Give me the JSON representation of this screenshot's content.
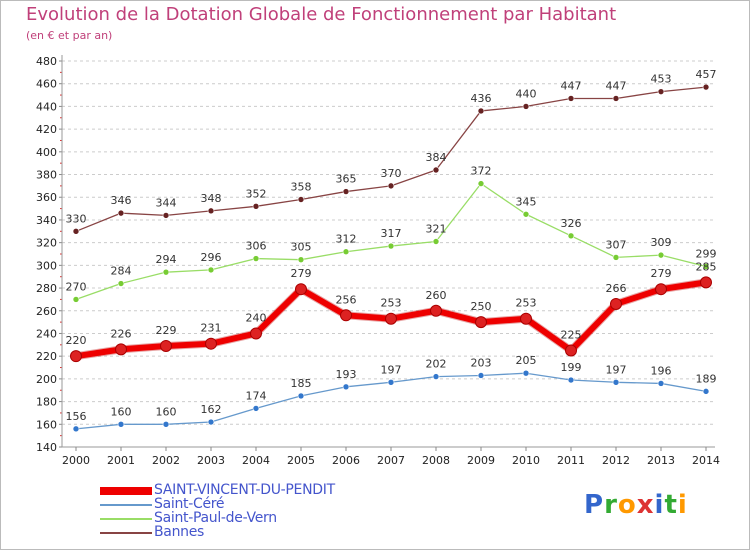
{
  "header": {
    "title": "Evolution de la Dotation Globale de Fonctionnement par Habitant",
    "subtitle": "(en € et par an)"
  },
  "logo": {
    "text": "Proxiti",
    "colors": [
      "#3366cc",
      "#33aa33",
      "#ff9900",
      "#dd3333",
      "#3366cc",
      "#33aa33",
      "#ff9900"
    ]
  },
  "chart_data": {
    "type": "line",
    "x": [
      2000,
      2001,
      2002,
      2003,
      2004,
      2005,
      2006,
      2007,
      2008,
      2009,
      2010,
      2011,
      2012,
      2013,
      2014
    ],
    "ylim": [
      140,
      480
    ],
    "yticks": [
      140,
      160,
      180,
      200,
      220,
      240,
      260,
      280,
      300,
      320,
      340,
      360,
      380,
      400,
      420,
      440,
      460,
      480
    ],
    "grid": "horizontal-dashed",
    "legend_position": "bottom-left",
    "series": [
      {
        "name": "SAINT-VINCENT-DU-PENDIT",
        "color": "#ee0000",
        "marker": "#dd2222",
        "width": 6,
        "values": [
          220,
          226,
          229,
          231,
          240,
          279,
          256,
          253,
          260,
          250,
          253,
          225,
          266,
          279,
          285
        ]
      },
      {
        "name": "Saint-Céré",
        "color": "#6699cc",
        "marker": "#3377cc",
        "width": 1.3,
        "values": [
          156,
          160,
          160,
          162,
          174,
          185,
          193,
          197,
          202,
          203,
          205,
          199,
          197,
          196,
          189
        ]
      },
      {
        "name": "Saint-Paul-de-Vern",
        "color": "#99dd66",
        "marker": "#77cc33",
        "width": 1.3,
        "values": [
          270,
          284,
          294,
          296,
          306,
          305,
          312,
          317,
          321,
          372,
          345,
          326,
          307,
          309,
          299
        ]
      },
      {
        "name": "Bannes",
        "color": "#884444",
        "marker": "#662222",
        "width": 1.3,
        "values": [
          330,
          346,
          344,
          348,
          352,
          358,
          365,
          370,
          384,
          436,
          440,
          447,
          447,
          453,
          457
        ]
      }
    ]
  }
}
